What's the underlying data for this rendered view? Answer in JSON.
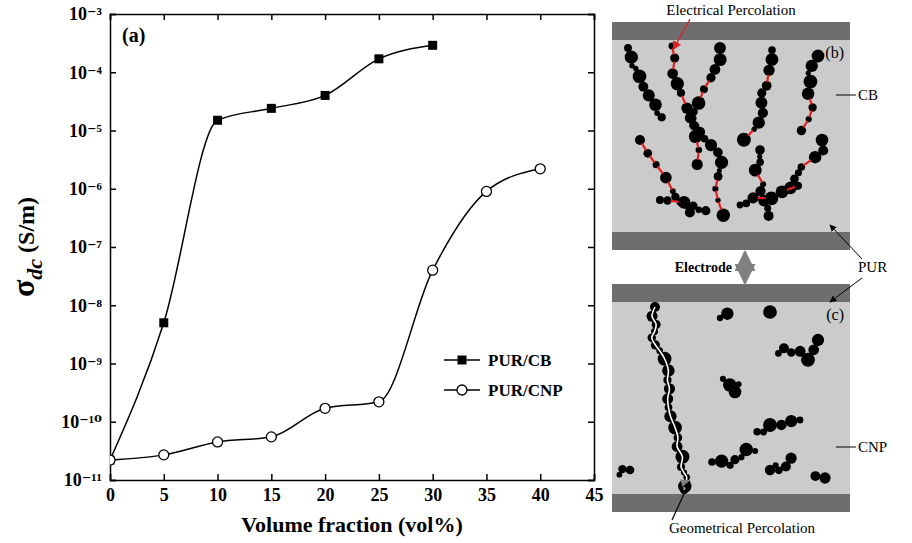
{
  "chart_data": {
    "type": "line",
    "title": "(a)",
    "x_label": "Volume fraction (vol%)",
    "y_label": "σdc (S/m)",
    "log": "y",
    "xlim": [
      0,
      45
    ],
    "xticks": [
      0,
      5,
      10,
      15,
      20,
      25,
      30,
      35,
      40,
      45
    ],
    "ylim": [
      1e-11,
      0.001
    ],
    "yticks": [
      {
        "value": 1e-11,
        "label": "10⁻¹¹"
      },
      {
        "value": 1e-10,
        "label": "10⁻¹⁰"
      },
      {
        "value": 1e-09,
        "label": "10⁻⁹"
      },
      {
        "value": 1e-08,
        "label": "10⁻⁸"
      },
      {
        "value": 1e-07,
        "label": "10⁻⁷"
      },
      {
        "value": 1e-06,
        "label": "10⁻⁶"
      },
      {
        "value": 1e-05,
        "label": "10⁻⁵"
      },
      {
        "value": 0.0001,
        "label": "10⁻⁴"
      },
      {
        "value": 0.001,
        "label": "10⁻³"
      }
    ],
    "legend": "right",
    "series": [
      {
        "name": "PUR/CB",
        "color": "#000000",
        "marker": "square",
        "x": [
          0,
          5,
          10,
          15,
          20,
          25,
          30
        ],
        "values": [
          2.2e-11,
          5e-09,
          1.5e-05,
          2.4e-05,
          4e-05,
          0.00017,
          0.00029
        ]
      },
      {
        "name": "PUR/CNP",
        "color": "#000000",
        "marker": "circle",
        "x": [
          0,
          5,
          10,
          15,
          20,
          25,
          30,
          35,
          40
        ],
        "values": [
          2.2e-11,
          2.7e-11,
          4.5e-11,
          5.5e-11,
          1.7e-10,
          2.2e-10,
          4e-08,
          9e-07,
          2.2e-06
        ]
      }
    ]
  },
  "diagram": {
    "panels": [
      {
        "label": "(b)",
        "filler": "CB",
        "annotation": "Electrical Percolation"
      },
      {
        "label": "(c)",
        "filler": "CNP",
        "annotation": "Geometrical Percolation"
      }
    ],
    "matrix": "PUR",
    "electrode": "Electrode"
  }
}
